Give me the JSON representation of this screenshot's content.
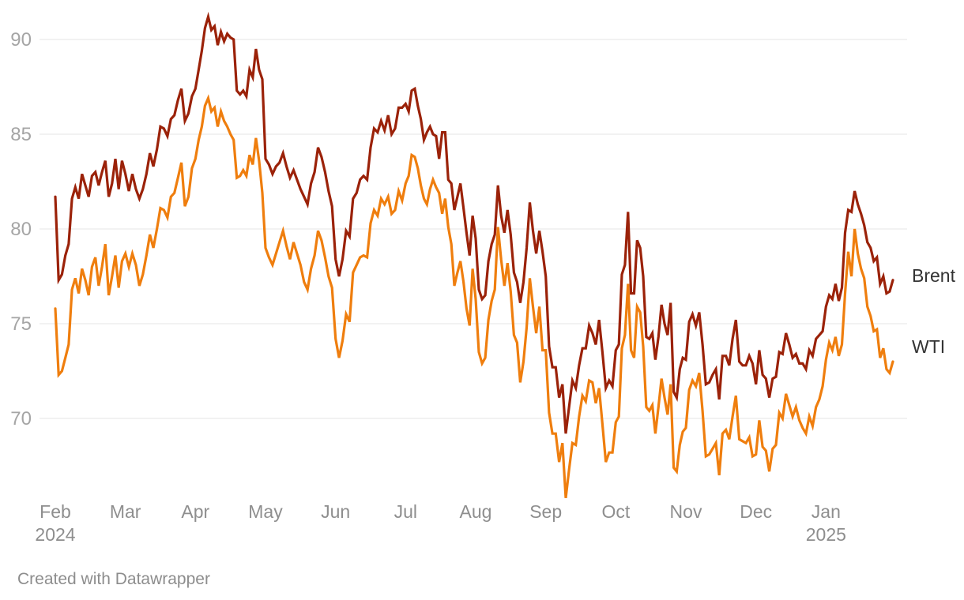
{
  "chart_data": {
    "type": "line",
    "title": "",
    "grid": true,
    "legend_position": "line-end-right",
    "x_axis": {
      "months": [
        "Feb",
        "Mar",
        "Apr",
        "May",
        "Jun",
        "Jul",
        "Aug",
        "Sep",
        "Oct",
        "Nov",
        "Dec",
        "Jan"
      ],
      "year_start": "2024",
      "year_end": "2025"
    },
    "y_axis": {
      "ticks": [
        90,
        85,
        80,
        75,
        70
      ],
      "range": [
        64.5,
        92
      ]
    },
    "series": [
      {
        "name": "Brent",
        "color": "#9b2209",
        "monthly_values": [
          [
            81.7,
            77.3,
            77.6,
            78.6,
            79.2,
            81.6,
            82.2,
            81.6,
            82.9,
            82.3,
            81.7,
            82.8,
            83.0,
            82.3,
            83.0,
            83.6,
            81.7,
            82.4,
            83.7,
            82.1,
            83.6
          ],
          [
            82.9,
            82.0,
            82.9,
            82.1,
            81.6,
            82.1,
            82.9,
            84.0,
            83.3,
            84.2,
            85.4,
            85.3,
            84.9,
            85.8,
            86.0,
            86.8,
            87.4,
            85.7,
            86.1,
            87.0
          ],
          [
            87.4,
            88.4,
            89.4,
            90.6,
            91.2,
            90.5,
            90.7,
            89.7,
            90.4,
            89.9,
            90.3,
            90.1,
            90.0,
            87.3,
            87.1,
            87.3,
            87.0,
            88.4,
            88.0,
            89.5,
            88.4,
            87.9
          ],
          [
            83.7,
            83.4,
            82.9,
            83.3,
            83.5,
            84.0,
            83.3,
            82.7,
            83.1,
            82.6,
            82.1,
            81.7,
            81.3,
            82.4,
            83.0,
            84.3,
            83.8,
            83.0,
            82.0,
            81.2
          ],
          [
            78.4,
            77.5,
            78.4,
            79.9,
            79.6,
            81.6,
            81.9,
            82.6,
            82.8,
            82.6,
            84.3,
            85.3,
            85.1,
            85.7,
            85.2,
            86.0,
            85.0,
            85.3,
            86.4,
            86.4
          ],
          [
            86.6,
            86.2,
            87.3,
            87.4,
            86.5,
            85.8,
            84.7,
            85.1,
            85.4,
            85.0,
            84.9,
            83.7,
            85.1,
            85.1,
            82.6,
            82.4,
            81.0,
            81.7,
            82.4,
            81.1,
            79.8,
            78.6,
            80.7
          ],
          [
            79.5,
            76.8,
            76.3,
            76.5,
            78.3,
            79.2,
            79.7,
            82.3,
            80.7,
            79.8,
            81.0,
            79.7,
            77.7,
            77.2,
            76.1,
            77.2,
            79.0,
            81.4,
            79.9,
            78.7,
            79.9,
            78.8
          ],
          [
            77.5,
            73.8,
            72.7,
            72.7,
            71.1,
            71.8,
            69.2,
            70.6,
            72.0,
            71.6,
            72.8,
            73.7,
            73.7,
            74.9,
            74.5,
            73.9,
            75.2,
            73.5,
            71.6,
            72.0,
            71.7
          ],
          [
            73.6,
            73.9,
            77.6,
            78.1,
            80.9,
            76.6,
            76.6,
            79.4,
            79.0,
            77.5,
            74.3,
            74.2,
            74.5,
            73.1,
            74.3,
            76.0,
            75.0,
            74.4,
            76.1,
            71.4,
            71.1,
            72.6,
            73.2
          ],
          [
            73.1,
            75.1,
            75.5,
            74.9,
            75.6,
            73.9,
            71.8,
            71.9,
            72.3,
            72.6,
            71.0,
            73.3,
            73.3,
            72.8,
            74.2,
            75.2,
            73.0,
            72.8,
            72.8,
            73.3,
            72.9
          ],
          [
            71.8,
            73.6,
            72.3,
            72.1,
            71.1,
            72.1,
            72.2,
            73.5,
            73.4,
            74.5,
            73.9,
            73.2,
            73.4,
            72.9,
            72.9,
            72.6,
            73.6,
            73.3,
            74.2,
            74.4,
            74.6
          ],
          [
            75.9,
            76.5,
            76.3,
            77.1,
            76.2,
            76.9,
            79.8,
            81.0,
            80.9,
            82.0,
            81.3,
            80.8,
            80.2,
            79.3,
            79.0,
            78.3,
            78.5,
            77.1,
            77.5,
            76.6,
            76.7,
            77.3
          ]
        ]
      },
      {
        "name": "WTI",
        "color": "#ef7e0e",
        "monthly_values": [
          [
            75.8,
            72.3,
            72.5,
            73.2,
            73.9,
            76.8,
            77.4,
            76.6,
            77.9,
            77.3,
            76.5,
            78.0,
            78.5,
            77.0,
            78.0,
            79.2,
            76.5,
            77.5,
            78.6,
            76.9,
            78.3
          ],
          [
            78.7,
            78.0,
            78.7,
            78.1,
            77.0,
            77.6,
            78.6,
            79.7,
            79.0,
            80.0,
            81.1,
            81.0,
            80.6,
            81.7,
            81.9,
            82.7,
            83.5,
            81.2,
            81.7,
            83.2
          ],
          [
            83.7,
            84.7,
            85.4,
            86.5,
            86.9,
            86.2,
            86.4,
            85.4,
            86.2,
            85.7,
            85.4,
            85.0,
            84.7,
            82.7,
            82.8,
            83.1,
            82.8,
            83.9,
            83.4,
            84.8,
            83.6,
            81.9
          ],
          [
            79.0,
            78.5,
            78.1,
            78.7,
            79.3,
            79.9,
            79.1,
            78.4,
            79.3,
            78.7,
            78.1,
            77.2,
            76.8,
            77.9,
            78.6,
            79.9,
            79.4,
            78.5,
            77.5,
            76.9
          ],
          [
            74.2,
            73.2,
            74.1,
            75.5,
            75.1,
            77.7,
            78.1,
            78.5,
            78.6,
            78.5,
            80.3,
            81.0,
            80.7,
            81.6,
            81.3,
            81.7,
            80.8,
            81.0,
            82.0,
            81.5
          ],
          [
            82.4,
            82.8,
            83.9,
            83.8,
            83.2,
            82.3,
            81.6,
            81.3,
            82.1,
            82.6,
            82.2,
            81.9,
            80.8,
            81.6,
            80.1,
            79.2,
            77.0,
            77.7,
            78.3,
            77.2,
            75.8,
            74.9,
            77.9
          ],
          [
            76.3,
            73.5,
            72.9,
            73.2,
            75.2,
            76.2,
            76.8,
            80.1,
            78.4,
            77.0,
            78.2,
            76.7,
            74.4,
            74.0,
            71.9,
            73.0,
            74.8,
            77.4,
            75.9,
            74.5,
            75.9,
            73.6
          ],
          [
            73.6,
            70.3,
            69.2,
            69.2,
            67.7,
            68.7,
            65.8,
            67.3,
            68.7,
            68.6,
            70.1,
            71.2,
            70.9,
            72.0,
            71.9,
            70.8,
            71.6,
            69.7,
            67.7,
            68.2,
            68.2
          ],
          [
            69.8,
            70.1,
            73.7,
            74.4,
            77.1,
            73.6,
            73.2,
            75.9,
            75.6,
            73.8,
            70.6,
            70.4,
            70.7,
            69.2,
            70.6,
            72.1,
            71.1,
            70.2,
            71.8,
            67.4,
            67.2,
            68.6,
            69.3
          ],
          [
            69.5,
            71.5,
            72.0,
            71.7,
            72.4,
            70.4,
            68.0,
            68.1,
            68.4,
            68.7,
            67.0,
            69.2,
            69.4,
            68.9,
            70.1,
            71.2,
            68.9,
            68.8,
            68.7,
            69.0,
            68.0
          ],
          [
            68.1,
            69.9,
            68.5,
            68.3,
            67.2,
            68.4,
            68.6,
            70.3,
            70.0,
            71.3,
            70.7,
            70.1,
            70.6,
            69.9,
            69.5,
            69.2,
            70.1,
            69.6,
            70.6,
            71.0,
            71.7
          ],
          [
            73.1,
            74.0,
            73.6,
            74.3,
            73.3,
            73.9,
            76.6,
            78.8,
            77.5,
            80.0,
            78.7,
            77.9,
            77.4,
            75.9,
            75.4,
            74.6,
            74.7,
            73.2,
            73.7,
            72.6,
            72.4,
            73.0
          ]
        ]
      }
    ]
  },
  "footer": {
    "credit": "Created with Datawrapper"
  }
}
